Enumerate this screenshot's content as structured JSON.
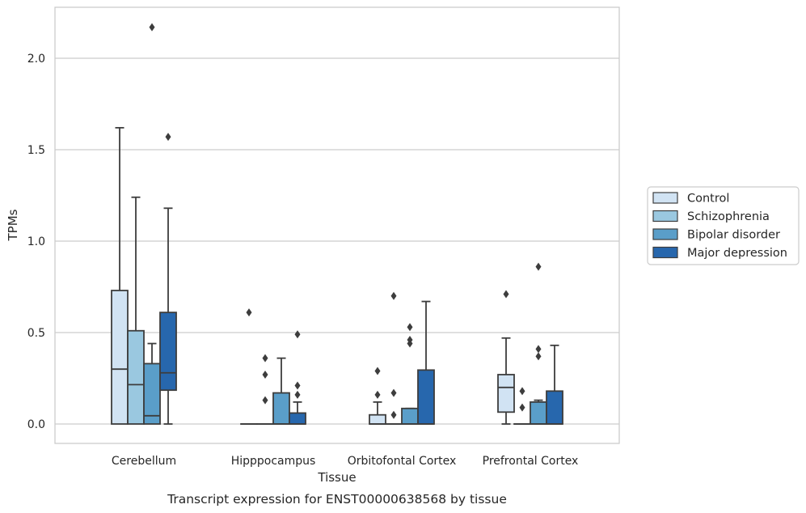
{
  "caption": "Transcript expression for ENST00000638568 by tissue",
  "chart_data": {
    "type": "box",
    "xlabel": "Tissue",
    "ylabel": "TPMs",
    "ylim": [
      -0.1,
      2.28
    ],
    "yticks": [
      0.0,
      0.5,
      1.0,
      1.5,
      2.0
    ],
    "ytick_labels": [
      "0.0",
      "0.5",
      "1.0",
      "1.5",
      "2.0"
    ],
    "grid": "horizontal",
    "legend_position": "right",
    "categories": [
      "Cerebellum",
      "Hipppocampus",
      "Orbitofontal Cortex",
      "Prefrontal Cortex"
    ],
    "series": [
      {
        "name": "Control",
        "color": "#d1e3f3",
        "boxes": [
          {
            "q1": 0.0,
            "median": 0.3,
            "q3": 0.73,
            "whisker_low": 0.0,
            "whisker_high": 1.62,
            "outliers": []
          },
          {
            "q1": 0.0,
            "median": 0.0,
            "q3": 0.0,
            "whisker_low": 0.0,
            "whisker_high": 0.0,
            "outliers": [
              0.61
            ]
          },
          {
            "q1": 0.0,
            "median": 0.0,
            "q3": 0.05,
            "whisker_low": 0.0,
            "whisker_high": 0.12,
            "outliers": [
              0.16,
              0.29
            ]
          },
          {
            "q1": 0.065,
            "median": 0.2,
            "q3": 0.27,
            "whisker_low": 0.0,
            "whisker_high": 0.47,
            "outliers": [
              0.71
            ]
          }
        ]
      },
      {
        "name": "Schizophrenia",
        "color": "#9ac8e0",
        "boxes": [
          {
            "q1": 0.0,
            "median": 0.215,
            "q3": 0.51,
            "whisker_low": 0.0,
            "whisker_high": 1.24,
            "outliers": []
          },
          {
            "q1": 0.0,
            "median": 0.0,
            "q3": 0.0,
            "whisker_low": 0.0,
            "whisker_high": 0.0,
            "outliers": [
              0.13,
              0.27,
              0.36
            ]
          },
          {
            "q1": 0.0,
            "median": 0.0,
            "q3": 0.0,
            "whisker_low": 0.0,
            "whisker_high": 0.0,
            "outliers": [
              0.05,
              0.17,
              0.7
            ]
          },
          {
            "q1": 0.0,
            "median": 0.0,
            "q3": 0.0,
            "whisker_low": 0.0,
            "whisker_high": 0.0,
            "outliers": [
              0.09,
              0.18
            ]
          }
        ]
      },
      {
        "name": "Bipolar disorder",
        "color": "#5a9ec9",
        "boxes": [
          {
            "q1": 0.0,
            "median": 0.045,
            "q3": 0.33,
            "whisker_low": 0.0,
            "whisker_high": 0.44,
            "outliers": [
              2.17
            ]
          },
          {
            "q1": 0.0,
            "median": 0.0,
            "q3": 0.17,
            "whisker_low": 0.0,
            "whisker_high": 0.36,
            "outliers": []
          },
          {
            "q1": 0.0,
            "median": 0.0,
            "q3": 0.085,
            "whisker_low": 0.0,
            "whisker_high": 0.085,
            "outliers": [
              0.44,
              0.46,
              0.53
            ]
          },
          {
            "q1": 0.0,
            "median": 0.0,
            "q3": 0.12,
            "whisker_low": 0.0,
            "whisker_high": 0.13,
            "outliers": [
              0.37,
              0.41,
              0.86
            ]
          }
        ]
      },
      {
        "name": "Major depression",
        "color": "#2767ad",
        "boxes": [
          {
            "q1": 0.185,
            "median": 0.28,
            "q3": 0.61,
            "whisker_low": 0.0,
            "whisker_high": 1.18,
            "outliers": [
              1.57
            ]
          },
          {
            "q1": 0.0,
            "median": 0.0,
            "q3": 0.06,
            "whisker_low": 0.0,
            "whisker_high": 0.12,
            "outliers": [
              0.16,
              0.21,
              0.49
            ]
          },
          {
            "q1": 0.0,
            "median": 0.0,
            "q3": 0.295,
            "whisker_low": 0.0,
            "whisker_high": 0.67,
            "outliers": []
          },
          {
            "q1": 0.0,
            "median": 0.0,
            "q3": 0.18,
            "whisker_low": 0.0,
            "whisker_high": 0.43,
            "outliers": []
          }
        ]
      }
    ]
  }
}
